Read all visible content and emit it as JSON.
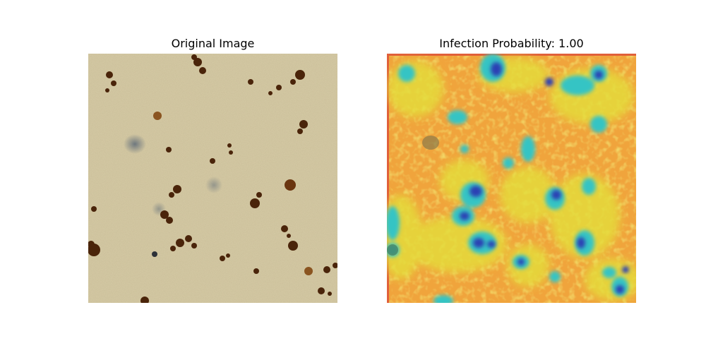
{
  "figure": {
    "left_panel": {
      "title": "Original Image",
      "image_semantic": "stained-cell-micrograph"
    },
    "right_panel": {
      "title": "Infection Probability: 1.00",
      "image_semantic": "infection-heatmap-overlay"
    }
  },
  "colors": {
    "tissue_background": "#d8cda8",
    "stain_dark": "#3a1d08",
    "stain_brown": "#7a4515",
    "heat_orange": "#f0a23a",
    "heat_yellow": "#e6de38",
    "heat_cyan": "#2fc3c8",
    "heat_blue": "#2a3fb0"
  }
}
